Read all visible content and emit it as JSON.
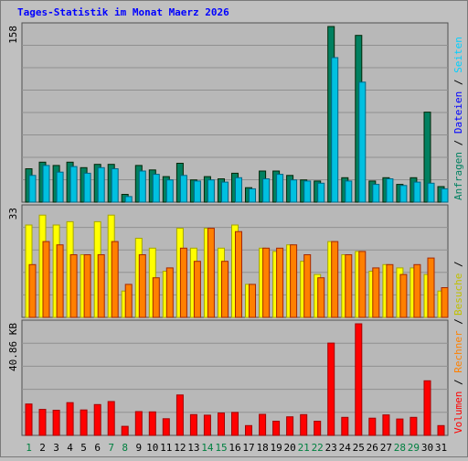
{
  "title": "Tages-Statistik im Monat Maerz 2026",
  "colors": {
    "background": "#c0c0c0",
    "plot": "#b8b8b8",
    "grid": "#909090",
    "title": "#0000ff",
    "anfragen": "#008060",
    "dateien": "#00c0e0",
    "seiten": "#00d0ff",
    "besuche": "#ffff00",
    "rechner": "#ff8000",
    "volumen": "#ff0000",
    "weekend_label": "#008040",
    "label": "#000000"
  },
  "chart_data": [
    {
      "type": "bar",
      "panel": "top",
      "y_max_label": "158",
      "ylim": [
        0,
        158
      ],
      "categories": [
        "1",
        "2",
        "3",
        "4",
        "5",
        "6",
        "7",
        "8",
        "9",
        "10",
        "11",
        "12",
        "13",
        "14",
        "15",
        "16",
        "17",
        "18",
        "19",
        "20",
        "21",
        "22",
        "23",
        "24",
        "25",
        "26",
        "27",
        "28",
        "29",
        "30",
        "31"
      ],
      "weekend": [
        "1",
        "7",
        "8",
        "14",
        "15",
        "21",
        "22",
        "28",
        "29"
      ],
      "side_labels": [
        {
          "text": "Anfragen",
          "color": "#008060"
        },
        {
          "text": " / ",
          "color": "#000000"
        },
        {
          "text": "Dateien",
          "color": "#0000ff"
        },
        {
          "text": " / ",
          "color": "#000000"
        },
        {
          "text": "Seiten",
          "color": "#00d0ff"
        }
      ],
      "series": [
        {
          "key": "anfragen",
          "values": [
            30,
            36,
            33,
            36,
            31,
            34,
            34,
            7,
            33,
            29,
            23,
            35,
            20,
            23,
            21,
            26,
            13,
            28,
            28,
            24,
            20,
            19,
            158,
            22,
            150,
            19,
            22,
            16,
            22,
            81,
            14
          ]
        },
        {
          "key": "dateien",
          "values": [
            24,
            33,
            27,
            32,
            26,
            31,
            30,
            5,
            28,
            25,
            20,
            24,
            19,
            20,
            18,
            22,
            12,
            21,
            25,
            20,
            19,
            17,
            130,
            19,
            108,
            16,
            21,
            15,
            18,
            17,
            12
          ]
        }
      ]
    },
    {
      "type": "bar",
      "panel": "middle",
      "y_max_label": "33",
      "ylim": [
        0,
        33
      ],
      "categories": [
        "1",
        "2",
        "3",
        "4",
        "5",
        "6",
        "7",
        "8",
        "9",
        "10",
        "11",
        "12",
        "13",
        "14",
        "15",
        "16",
        "17",
        "18",
        "19",
        "20",
        "21",
        "22",
        "23",
        "24",
        "25",
        "26",
        "27",
        "28",
        "29",
        "30",
        "31"
      ],
      "side_labels": [
        {
          "text": "Besuche",
          "color": "#c0c000"
        },
        {
          "text": " / ",
          "color": "#000000"
        }
      ],
      "series": [
        {
          "key": "besuche",
          "values": [
            28,
            31,
            28,
            29,
            19,
            29,
            31,
            8,
            24,
            21,
            14,
            27,
            21,
            27,
            21,
            28,
            10,
            21,
            20,
            22,
            17,
            13,
            23,
            19,
            20,
            14,
            16,
            15,
            15,
            13,
            8
          ]
        },
        {
          "key": "rechner",
          "values": [
            16,
            23,
            22,
            19,
            19,
            19,
            23,
            10,
            19,
            12,
            15,
            21,
            17,
            27,
            17,
            26,
            10,
            21,
            21,
            22,
            19,
            12,
            23,
            19,
            20,
            15,
            16,
            13,
            16,
            18,
            9
          ]
        }
      ]
    },
    {
      "type": "bar",
      "panel": "bottom",
      "y_max_label": "40.86 KB",
      "ylim": [
        0,
        40.86
      ],
      "categories": [
        "1",
        "2",
        "3",
        "4",
        "5",
        "6",
        "7",
        "8",
        "9",
        "10",
        "11",
        "12",
        "13",
        "14",
        "15",
        "16",
        "17",
        "18",
        "19",
        "20",
        "21",
        "22",
        "23",
        "24",
        "25",
        "26",
        "27",
        "28",
        "29",
        "30",
        "31"
      ],
      "side_labels": [
        {
          "text": "Volumen",
          "color": "#ff0000"
        },
        {
          "text": " / ",
          "color": "#000000"
        },
        {
          "text": "Rechner",
          "color": "#ff8000"
        },
        {
          "text": " / ",
          "color": "#000000"
        }
      ],
      "series": [
        {
          "key": "volumen",
          "values": [
            11.5,
            9.5,
            9.2,
            12.0,
            9.3,
            11.3,
            12.4,
            3.3,
            8.7,
            8.6,
            6.1,
            14.8,
            7.6,
            7.4,
            8.2,
            8.4,
            3.6,
            7.7,
            5.2,
            6.8,
            7.6,
            5.2,
            33.8,
            6.6,
            40.86,
            6.3,
            7.5,
            6.0,
            6.6,
            20.0,
            3.6
          ]
        }
      ]
    }
  ]
}
